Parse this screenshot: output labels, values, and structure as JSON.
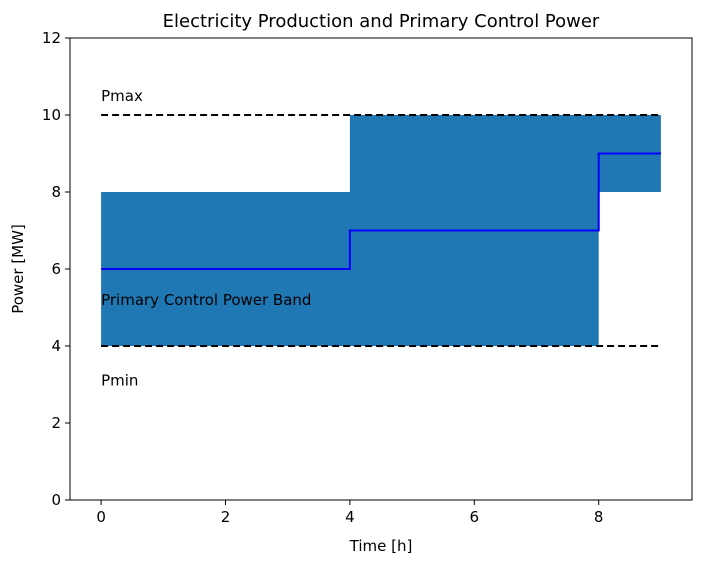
{
  "chart_data": {
    "type": "area",
    "title": "Electricity Production and Primary Control Power",
    "xlabel": "Time [h]",
    "ylabel": "Power [MW]",
    "xlim": [
      -0.5,
      9.5
    ],
    "ylim": [
      0,
      12
    ],
    "xticks": [
      0,
      2,
      4,
      6,
      8
    ],
    "yticks": [
      0,
      2,
      4,
      6,
      8,
      10,
      12
    ],
    "grid": false,
    "band": {
      "color": "#1f77b4",
      "x": [
        0,
        4,
        4,
        8,
        8,
        9
      ],
      "lower": [
        4,
        4,
        4,
        4,
        8,
        8
      ],
      "upper": [
        8,
        8,
        10,
        10,
        10,
        10
      ]
    },
    "production": {
      "color": "#0000ff",
      "x": [
        0,
        4,
        4,
        8,
        8,
        9
      ],
      "y": [
        6,
        6,
        7,
        7,
        9,
        9
      ]
    },
    "pmax_line": {
      "y": 10,
      "x": [
        0,
        9
      ],
      "color": "#000000",
      "style": "dashed"
    },
    "pmin_line": {
      "y": 4,
      "x": [
        0,
        9
      ],
      "color": "#000000",
      "style": "dashed"
    },
    "annotations": [
      {
        "text": "Pmax",
        "x": 0,
        "y": 10.5
      },
      {
        "text": "Primary Control Power Band",
        "x": 0,
        "y": 5.2
      },
      {
        "text": "Pmin",
        "x": 0,
        "y": 3.1
      }
    ]
  }
}
